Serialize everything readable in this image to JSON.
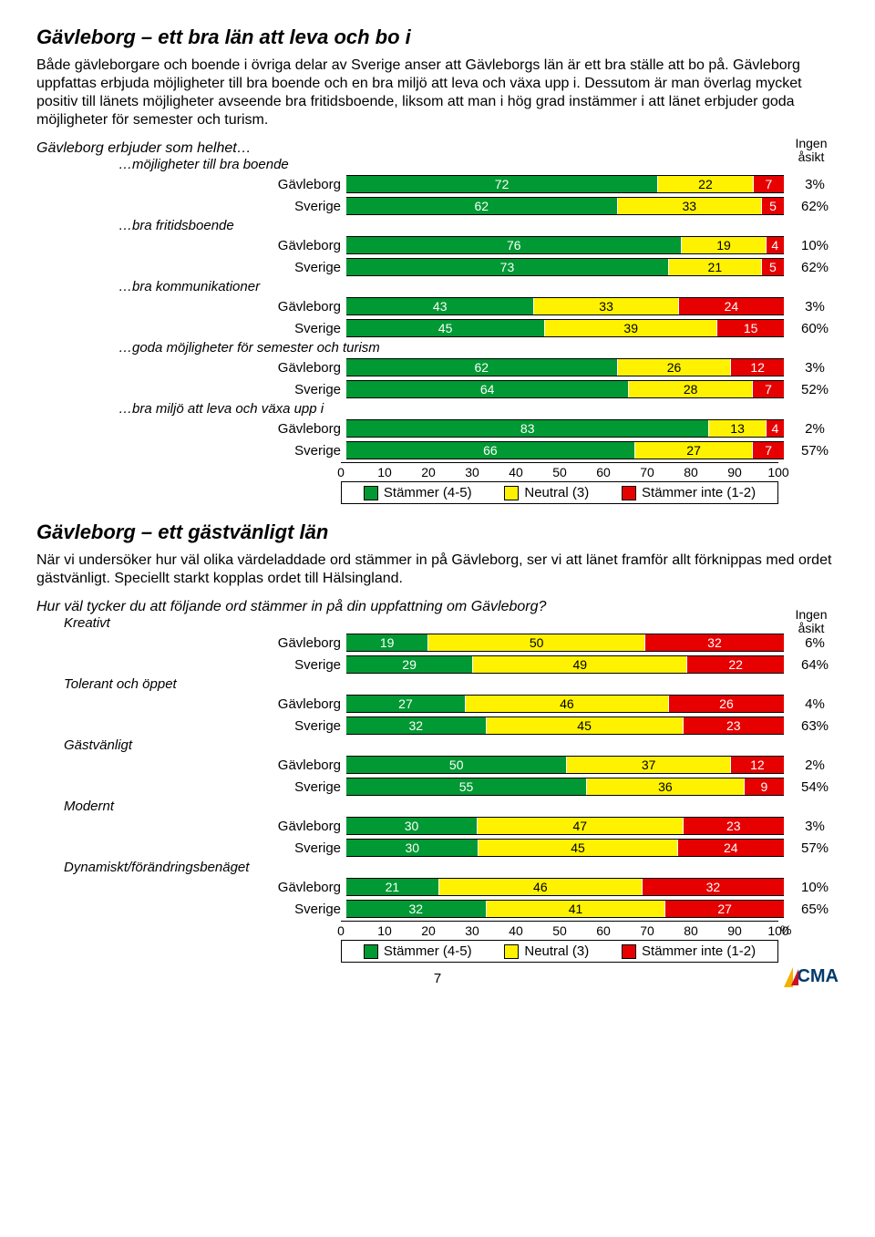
{
  "colors": {
    "agree": "#009933",
    "neutral": "#fff200",
    "disagree": "#e60000",
    "border": "#000000",
    "text_on_dark": "#ffffff"
  },
  "axis": {
    "min": 0,
    "max": 100,
    "step": 10
  },
  "legend": {
    "items": [
      "Stämmer (4-5)",
      "Neutral (3)",
      "Stämmer inte (1-2)"
    ]
  },
  "no_opinion_header": "Ingen\nåsikt",
  "section1": {
    "heading": "Gävleborg – ett bra län att leva och bo i",
    "body": "Både gävleborgare och boende i övriga delar av Sverige anser att Gävleborgs län är ett bra ställe att bo på. Gävleborg uppfattas erbjuda möjligheter till bra boende och en bra miljö att leva och växa upp i. Dessutom är man överlag mycket positiv till länets möjligheter avseende bra fritidsboende, liksom att man i hög grad instämmer i att länet erbjuder goda möjligheter för semester och turism.",
    "stem": "Gävleborg erbjuder som helhet…",
    "groups": [
      {
        "label": "…möjligheter till bra boende",
        "rows": [
          {
            "label": "Gävleborg",
            "agree": 72,
            "neutral": 22,
            "disagree": 7,
            "pct": "3%"
          },
          {
            "label": "Sverige",
            "agree": 62,
            "neutral": 33,
            "disagree": 5,
            "pct": "62%"
          }
        ]
      },
      {
        "label": "…bra fritidsboende",
        "rows": [
          {
            "label": "Gävleborg",
            "agree": 76,
            "neutral": 19,
            "disagree": 4,
            "pct": "10%"
          },
          {
            "label": "Sverige",
            "agree": 73,
            "neutral": 21,
            "disagree": 5,
            "pct": "62%"
          }
        ]
      },
      {
        "label": "…bra kommunikationer",
        "rows": [
          {
            "label": "Gävleborg",
            "agree": 43,
            "neutral": 33,
            "disagree": 24,
            "pct": "3%"
          },
          {
            "label": "Sverige",
            "agree": 45,
            "neutral": 39,
            "disagree": 15,
            "pct": "60%"
          }
        ]
      },
      {
        "label": "…goda möjligheter för semester och turism",
        "rows": [
          {
            "label": "Gävleborg",
            "agree": 62,
            "neutral": 26,
            "disagree": 12,
            "pct": "3%"
          },
          {
            "label": "Sverige",
            "agree": 64,
            "neutral": 28,
            "disagree": 7,
            "pct": "52%"
          }
        ]
      },
      {
        "label": "…bra miljö att leva och växa upp i",
        "rows": [
          {
            "label": "Gävleborg",
            "agree": 83,
            "neutral": 13,
            "disagree": 4,
            "pct": "2%"
          },
          {
            "label": "Sverige",
            "agree": 66,
            "neutral": 27,
            "disagree": 7,
            "pct": "57%"
          }
        ]
      }
    ]
  },
  "section2": {
    "heading": "Gävleborg – ett gästvänligt län",
    "body": "När vi undersöker hur väl olika värdeladdade ord stämmer in på Gävleborg, ser vi att länet framför allt förknippas med ordet gästvänligt. Speciellt starkt kopplas ordet till Hälsingland.",
    "stem": "Hur väl tycker du att följande ord stämmer in på din uppfattning om Gävleborg?",
    "groups": [
      {
        "label": "Kreativt",
        "rows": [
          {
            "label": "Gävleborg",
            "agree": 19,
            "neutral": 50,
            "disagree": 32,
            "pct": "6%"
          },
          {
            "label": "Sverige",
            "agree": 29,
            "neutral": 49,
            "disagree": 22,
            "pct": "64%"
          }
        ]
      },
      {
        "label": "Tolerant och öppet",
        "rows": [
          {
            "label": "Gävleborg",
            "agree": 27,
            "neutral": 46,
            "disagree": 26,
            "pct": "4%"
          },
          {
            "label": "Sverige",
            "agree": 32,
            "neutral": 45,
            "disagree": 23,
            "pct": "63%"
          }
        ]
      },
      {
        "label": "Gästvänligt",
        "rows": [
          {
            "label": "Gävleborg",
            "agree": 50,
            "neutral": 37,
            "disagree": 12,
            "pct": "2%"
          },
          {
            "label": "Sverige",
            "agree": 55,
            "neutral": 36,
            "disagree": 9,
            "pct": "54%"
          }
        ]
      },
      {
        "label": "Modernt",
        "rows": [
          {
            "label": "Gävleborg",
            "agree": 30,
            "neutral": 47,
            "disagree": 23,
            "pct": "3%"
          },
          {
            "label": "Sverige",
            "agree": 30,
            "neutral": 45,
            "disagree": 24,
            "pct": "57%"
          }
        ]
      },
      {
        "label": "Dynamiskt/förändringsbenäget",
        "rows": [
          {
            "label": "Gävleborg",
            "agree": 21,
            "neutral": 46,
            "disagree": 32,
            "pct": "10%"
          },
          {
            "label": "Sverige",
            "agree": 32,
            "neutral": 41,
            "disagree": 27,
            "pct": "65%"
          }
        ]
      }
    ],
    "axis_suffix": "%"
  },
  "page_number": "7",
  "logo_text": "CMA"
}
